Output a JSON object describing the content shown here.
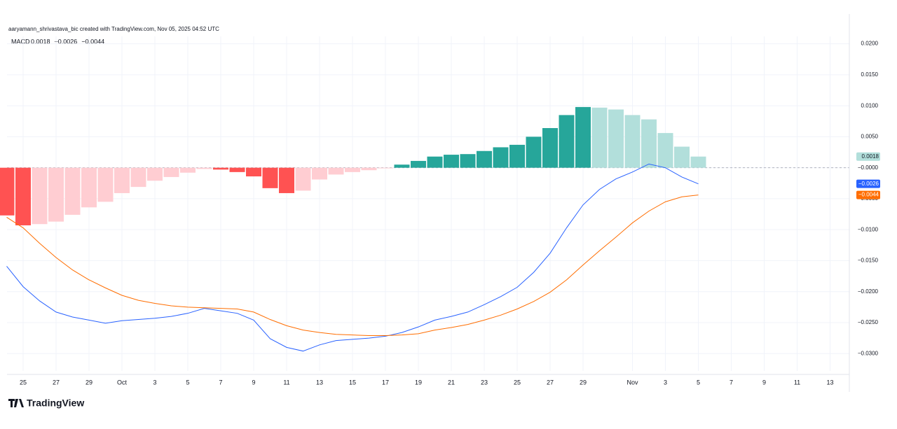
{
  "header": {
    "attribution": "aaryamann_shrivastava_bic created with TradingView.com, Nov 05, 2025 04:52 UTC",
    "indicator": "MACD"
  },
  "footer": {
    "logo": "TradingView"
  },
  "chart_data": {
    "type": "macd",
    "categories": [
      null,
      "25",
      null,
      "27",
      null,
      "29",
      null,
      "Oct",
      null,
      "3",
      null,
      "5",
      null,
      "7",
      null,
      "9",
      null,
      "11",
      null,
      "13",
      null,
      "15",
      null,
      "17",
      null,
      "19",
      null,
      "21",
      null,
      "23",
      null,
      "25",
      null,
      "27",
      null,
      "29",
      null,
      null,
      "Nov",
      null,
      "3",
      null,
      "5",
      null,
      "7",
      null,
      "9",
      null,
      "11",
      null,
      "13",
      null
    ],
    "ylim": [
      -0.0328,
      0.0212
    ],
    "yticks": [
      {
        "value": 0.02,
        "label": "0.0200"
      },
      {
        "value": 0.015,
        "label": "0.0150"
      },
      {
        "value": 0.01,
        "label": "0.0100"
      },
      {
        "value": 0.005,
        "label": "0.0050"
      },
      {
        "value": 0,
        "label": "−0.0000"
      },
      {
        "value": -0.005,
        "label": "−0.0050"
      },
      {
        "value": -0.01,
        "label": "−0.0100"
      },
      {
        "value": -0.015,
        "label": "−0.0150"
      },
      {
        "value": -0.02,
        "label": "−0.0200"
      },
      {
        "value": -0.025,
        "label": "−0.0250"
      },
      {
        "value": -0.03,
        "label": "−0.0300"
      }
    ],
    "grid": true,
    "series": [
      {
        "name": "Histogram",
        "kind": "histogram",
        "last_label": "0.0018",
        "color": "#b2dfdb",
        "values": [
          -0.0077,
          -0.0093,
          -0.0091,
          -0.0087,
          -0.0076,
          -0.0064,
          -0.0055,
          -0.0041,
          -0.0031,
          -0.0021,
          -0.0015,
          -0.0008,
          -0.0002,
          -0.0003,
          -0.0007,
          -0.0014,
          -0.0033,
          -0.0041,
          -0.0037,
          -0.0019,
          -0.0011,
          -0.0007,
          -0.0004,
          -0.0001,
          0.0005,
          0.0011,
          0.0018,
          0.0021,
          0.0022,
          0.0027,
          0.0033,
          0.0037,
          0.005,
          0.0064,
          0.0085,
          0.0098,
          0.0097,
          0.0094,
          0.0085,
          0.0078,
          0.0056,
          0.0034,
          0.0018,
          null,
          null,
          null,
          null,
          null,
          null,
          null,
          null,
          null
        ],
        "colors": [
          "#ff5252",
          "#ff5252",
          "#ffcdd2",
          "#ffcdd2",
          "#ffcdd2",
          "#ffcdd2",
          "#ffcdd2",
          "#ffcdd2",
          "#ffcdd2",
          "#ffcdd2",
          "#ffcdd2",
          "#ffcdd2",
          "#ffcdd2",
          "#ff5252",
          "#ff5252",
          "#ff5252",
          "#ff5252",
          "#ff5252",
          "#ffcdd2",
          "#ffcdd2",
          "#ffcdd2",
          "#ffcdd2",
          "#ffcdd2",
          "#ffcdd2",
          "#26a69a",
          "#26a69a",
          "#26a69a",
          "#26a69a",
          "#26a69a",
          "#26a69a",
          "#26a69a",
          "#26a69a",
          "#26a69a",
          "#26a69a",
          "#26a69a",
          "#26a69a",
          "#b2dfdb",
          "#b2dfdb",
          "#b2dfdb",
          "#b2dfdb",
          "#b2dfdb",
          "#b2dfdb",
          "#b2dfdb",
          null,
          null,
          null,
          null,
          null,
          null,
          null,
          null,
          null
        ]
      },
      {
        "name": "MACD",
        "kind": "line",
        "last_label": "−0.0026",
        "color": "#2962ff",
        "values": [
          -0.0159,
          -0.0192,
          -0.0215,
          -0.0233,
          -0.0241,
          -0.0246,
          -0.0251,
          -0.0247,
          -0.0245,
          -0.0243,
          -0.024,
          -0.0235,
          -0.0227,
          -0.0231,
          -0.0235,
          -0.0246,
          -0.0276,
          -0.029,
          -0.0296,
          -0.0286,
          -0.0279,
          -0.0277,
          -0.0275,
          -0.0272,
          -0.0266,
          -0.0257,
          -0.0246,
          -0.024,
          -0.0233,
          -0.0221,
          -0.0208,
          -0.0193,
          -0.0169,
          -0.0138,
          -0.0097,
          -0.006,
          -0.0035,
          -0.0018,
          -0.0007,
          0.0006,
          0,
          -0.0015,
          -0.0026,
          null,
          null,
          null,
          null,
          null,
          null,
          null,
          null,
          null
        ]
      },
      {
        "name": "Signal",
        "kind": "line",
        "last_label": "−0.0044",
        "color": "#ff6d00",
        "values": [
          -0.008,
          -0.0097,
          -0.0122,
          -0.0145,
          -0.0165,
          -0.0181,
          -0.0194,
          -0.0206,
          -0.0214,
          -0.0219,
          -0.0223,
          -0.0225,
          -0.0226,
          -0.0227,
          -0.0228,
          -0.0233,
          -0.0245,
          -0.0255,
          -0.0262,
          -0.0266,
          -0.0269,
          -0.027,
          -0.0271,
          -0.0271,
          -0.027,
          -0.0268,
          -0.0262,
          -0.0258,
          -0.0253,
          -0.0246,
          -0.0238,
          -0.0228,
          -0.0216,
          -0.0201,
          -0.0181,
          -0.0157,
          -0.0134,
          -0.0112,
          -0.0089,
          -0.007,
          -0.0055,
          -0.0047,
          -0.0044,
          null,
          null,
          null,
          null,
          null,
          null,
          null,
          null,
          null
        ]
      }
    ]
  }
}
